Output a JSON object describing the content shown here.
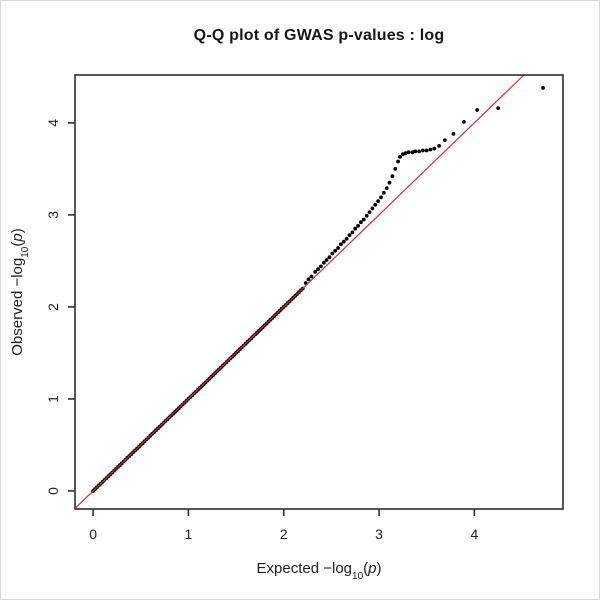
{
  "page": {
    "background": "#ffffff",
    "border_color": "#d8d8d8"
  },
  "chart_data": {
    "type": "scatter",
    "title": "Q-Q plot of GWAS p-values : log",
    "x_axis": {
      "label": "Expected −log10(p)",
      "label_parts": {
        "prefix": "Expected −log",
        "sub": "10",
        "open": "(",
        "var": "p",
        "close": ")"
      },
      "ticks": [
        "0",
        "1",
        "2",
        "3",
        "4"
      ],
      "tick_values": [
        0,
        1,
        2,
        3,
        4
      ],
      "lim": [
        -0.19,
        4.93
      ]
    },
    "y_axis": {
      "label": "Observed −log10(p)",
      "label_parts": {
        "prefix": "Observed −log",
        "sub": "10",
        "open": "(",
        "var": "p",
        "close": ")"
      },
      "ticks": [
        "0",
        "1",
        "2",
        "3",
        "4"
      ],
      "tick_values": [
        0,
        1,
        2,
        3,
        4
      ],
      "lim": [
        -0.196,
        4.52
      ]
    },
    "grid": "off",
    "legend": "none",
    "reference_line": {
      "relation": "y = x",
      "x_range": [
        -0.19,
        4.52
      ],
      "color": "#c0333f"
    },
    "marker": "filled-circle",
    "point_radius_px": 1.9,
    "on_line_run": {
      "relation": "y = x",
      "x_start": 0.0,
      "x_end": 2.2,
      "count": 111,
      "note": "dense run of points lying on the diagonal from (0,0) to (2.2,2.2)"
    },
    "tail_points": [
      [
        2.23,
        2.26
      ],
      [
        2.26,
        2.3
      ],
      [
        2.29,
        2.33
      ],
      [
        2.33,
        2.38
      ],
      [
        2.36,
        2.41
      ],
      [
        2.39,
        2.44
      ],
      [
        2.42,
        2.48
      ],
      [
        2.45,
        2.51
      ],
      [
        2.48,
        2.54
      ],
      [
        2.51,
        2.58
      ],
      [
        2.54,
        2.61
      ],
      [
        2.57,
        2.64
      ],
      [
        2.6,
        2.68
      ],
      [
        2.63,
        2.71
      ],
      [
        2.66,
        2.74
      ],
      [
        2.69,
        2.78
      ],
      [
        2.72,
        2.81
      ],
      [
        2.75,
        2.85
      ],
      [
        2.78,
        2.88
      ],
      [
        2.81,
        2.92
      ],
      [
        2.84,
        2.95
      ],
      [
        2.87,
        2.99
      ],
      [
        2.9,
        3.03
      ],
      [
        2.93,
        3.07
      ],
      [
        2.96,
        3.11
      ],
      [
        2.99,
        3.15
      ],
      [
        3.02,
        3.19
      ],
      [
        3.05,
        3.24
      ],
      [
        3.08,
        3.29
      ],
      [
        3.11,
        3.35
      ],
      [
        3.14,
        3.42
      ],
      [
        3.17,
        3.5
      ],
      [
        3.2,
        3.58
      ],
      [
        3.22,
        3.63
      ],
      [
        3.25,
        3.66
      ],
      [
        3.28,
        3.67
      ],
      [
        3.31,
        3.68
      ],
      [
        3.35,
        3.68
      ],
      [
        3.38,
        3.69
      ],
      [
        3.42,
        3.69
      ],
      [
        3.46,
        3.7
      ],
      [
        3.5,
        3.7
      ],
      [
        3.54,
        3.71
      ],
      [
        3.58,
        3.72
      ],
      [
        3.63,
        3.75
      ],
      [
        3.69,
        3.81
      ],
      [
        3.78,
        3.88
      ],
      [
        3.89,
        4.01
      ],
      [
        4.03,
        4.14
      ],
      [
        4.25,
        4.16
      ],
      [
        4.72,
        4.38
      ]
    ],
    "colors": {
      "points": "#000000",
      "reference_line": "#c0333f",
      "frame": "#2e2e2e",
      "text": "#1f1f1f"
    }
  }
}
